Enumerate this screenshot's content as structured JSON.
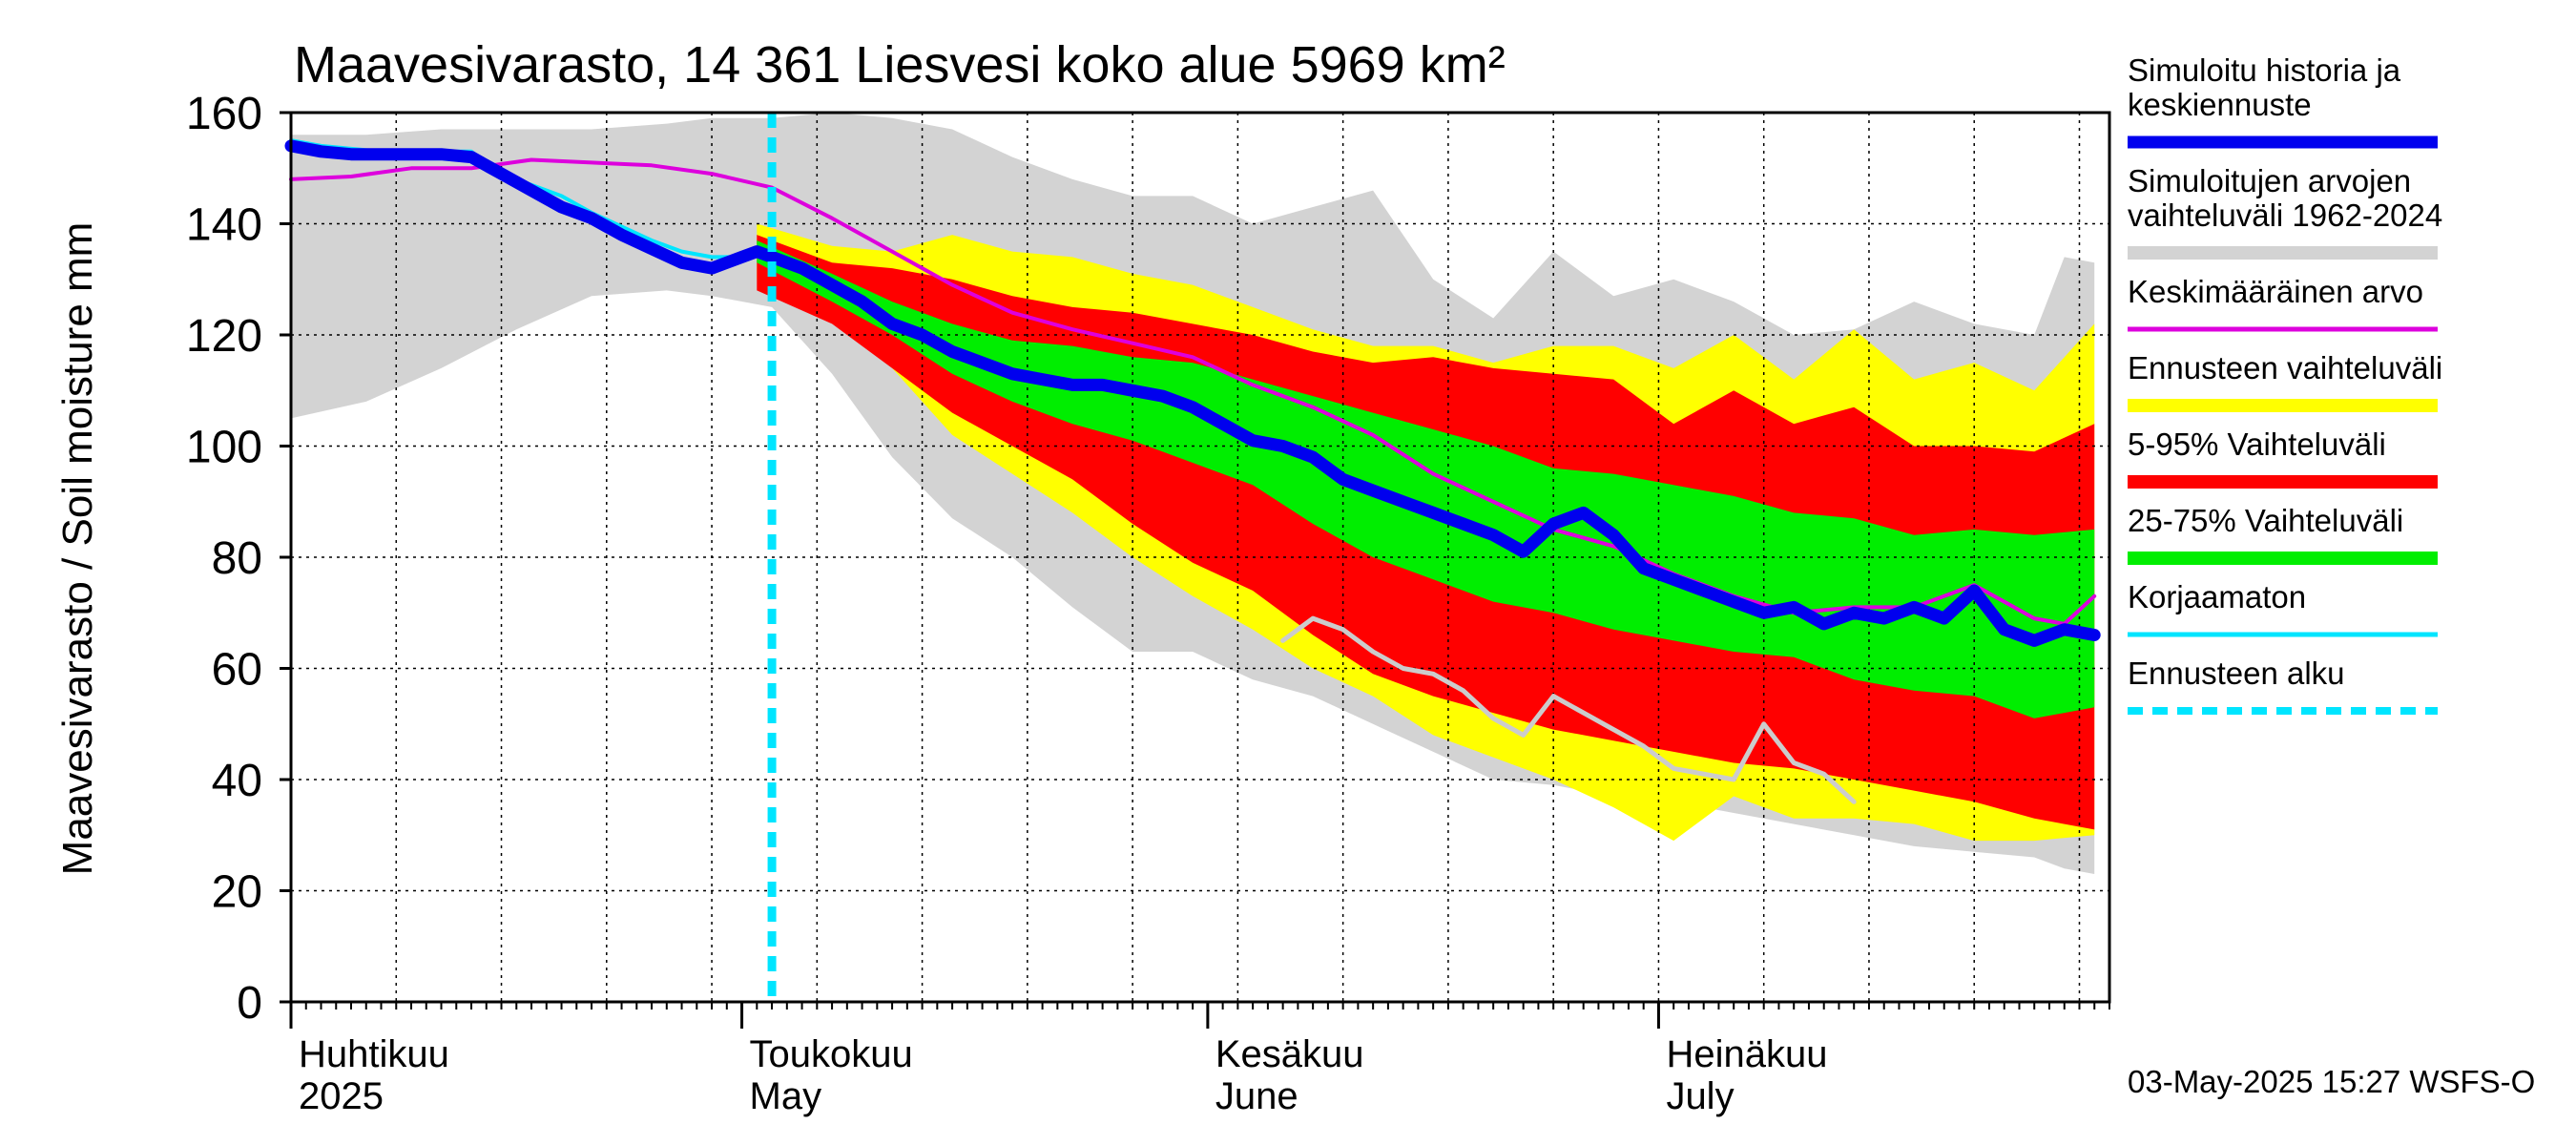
{
  "chart_data": {
    "type": "area",
    "title": "Maavesivarasto, 14 361 Liesvesi koko alue 5969 km²",
    "ylabel": "Maavesivarasto / Soil moisture   mm",
    "xlabel": "",
    "ylim": [
      0,
      160
    ],
    "yticks": [
      0,
      20,
      40,
      60,
      80,
      100,
      120,
      140,
      160
    ],
    "xdomain": [
      "2025-04-01",
      "2025-07-31"
    ],
    "forecast_start": "2025-05-03",
    "months": [
      {
        "label": "Huhtikuu",
        "label2": "2025",
        "start": "2025-04-01",
        "end": "2025-04-30"
      },
      {
        "label": "Toukokuu",
        "label2": "May",
        "start": "2025-05-01",
        "end": "2025-05-31"
      },
      {
        "label": "Kesäkuu",
        "label2": "June",
        "start": "2025-06-01",
        "end": "2025-06-30"
      },
      {
        "label": "Heinäkuu",
        "label2": "July",
        "start": "2025-07-01",
        "end": "2025-07-31"
      }
    ],
    "legend": [
      {
        "key": "history",
        "label": [
          "Simuloitu historia ja",
          "keskiennuste"
        ],
        "color": "#0000ee",
        "style": "thick"
      },
      {
        "key": "range_hist",
        "label": [
          "Simuloitujen arvojen",
          "vaihteluväli 1962-2024"
        ],
        "color": "#d3d3d3",
        "style": "band"
      },
      {
        "key": "mean",
        "label": [
          "Keskimääräinen arvo"
        ],
        "color": "#dd00dd",
        "style": "line"
      },
      {
        "key": "forecast_range",
        "label": [
          "Ennusteen vaihteluväli"
        ],
        "color": "#ffff00",
        "style": "band"
      },
      {
        "key": "p5_95",
        "label": [
          "5-95% Vaihteluväli"
        ],
        "color": "#ff0000",
        "style": "band"
      },
      {
        "key": "p25_75",
        "label": [
          "25-75% Vaihteluväli"
        ],
        "color": "#00ee00",
        "style": "band"
      },
      {
        "key": "uncorrected",
        "label": [
          "Korjaamaton"
        ],
        "color": "#00e5ff",
        "style": "line"
      },
      {
        "key": "forecast_start",
        "label": [
          "Ennusteen alku"
        ],
        "color": "#00e5ff",
        "style": "dashed"
      }
    ],
    "series": {
      "hist_band": {
        "x": [
          0,
          5,
          10,
          15,
          20,
          25,
          28,
          32,
          36,
          40,
          44,
          48,
          52,
          56,
          60,
          64,
          68,
          72,
          76,
          80,
          84,
          88,
          92,
          96,
          100,
          104,
          108,
          112,
          116,
          118,
          120
        ],
        "upper": [
          156,
          156,
          157,
          157,
          157,
          158,
          159,
          159,
          160,
          159,
          157,
          152,
          148,
          145,
          145,
          140,
          143,
          146,
          130,
          123,
          135,
          127,
          130,
          126,
          120,
          121,
          126,
          122,
          120,
          134,
          133
        ],
        "lower": [
          105,
          108,
          114,
          121,
          127,
          128,
          127,
          125,
          113,
          98,
          87,
          80,
          71,
          63,
          63,
          58,
          55,
          50,
          45,
          40,
          39,
          37,
          36,
          34,
          32,
          30,
          28,
          27,
          26,
          24,
          23
        ]
      },
      "forecast_band": {
        "x": [
          31,
          36,
          40,
          44,
          48,
          52,
          56,
          60,
          64,
          68,
          72,
          76,
          80,
          84,
          88,
          92,
          96,
          100,
          104,
          108,
          112,
          116,
          120
        ],
        "upper": [
          140,
          136,
          135,
          138,
          135,
          134,
          131,
          129,
          125,
          121,
          118,
          118,
          115,
          118,
          118,
          114,
          120,
          112,
          121,
          112,
          115,
          110,
          122
        ],
        "lower": [
          130,
          124,
          114,
          102,
          95,
          88,
          80,
          73,
          67,
          60,
          55,
          48,
          44,
          40,
          35,
          29,
          37,
          33,
          33,
          32,
          29,
          29,
          30
        ]
      },
      "p5_95": {
        "x": [
          31,
          36,
          40,
          44,
          48,
          52,
          56,
          60,
          64,
          68,
          72,
          76,
          80,
          84,
          88,
          92,
          96,
          100,
          104,
          108,
          112,
          116,
          120
        ],
        "upper": [
          138,
          133,
          132,
          130,
          127,
          125,
          124,
          122,
          120,
          117,
          115,
          116,
          114,
          113,
          112,
          104,
          110,
          104,
          107,
          100,
          100,
          99,
          104
        ],
        "lower": [
          128,
          122,
          114,
          106,
          100,
          94,
          86,
          79,
          74,
          66,
          59,
          55,
          52,
          49,
          47,
          45,
          43,
          42,
          40,
          38,
          36,
          33,
          31
        ]
      },
      "p25_75": {
        "x": [
          31,
          36,
          40,
          44,
          48,
          52,
          56,
          60,
          64,
          68,
          72,
          76,
          80,
          84,
          88,
          92,
          96,
          100,
          104,
          108,
          112,
          116,
          120
        ],
        "upper": [
          137,
          131,
          126,
          122,
          119,
          118,
          116,
          115,
          112,
          109,
          106,
          103,
          100,
          96,
          95,
          93,
          91,
          88,
          87,
          84,
          85,
          84,
          85
        ],
        "lower": [
          133,
          126,
          120,
          113,
          108,
          104,
          101,
          97,
          93,
          86,
          80,
          76,
          72,
          70,
          67,
          65,
          63,
          62,
          58,
          56,
          55,
          51,
          53
        ]
      },
      "median": {
        "x": [
          0,
          2,
          4,
          6,
          8,
          10,
          12,
          14,
          16,
          18,
          20,
          22,
          24,
          26,
          28,
          30,
          31,
          32,
          34,
          36,
          38,
          40,
          42,
          44,
          46,
          48,
          50,
          52,
          54,
          56,
          58,
          60,
          62,
          64,
          66,
          68,
          70,
          72,
          74,
          76,
          78,
          80,
          82,
          84,
          86,
          88,
          90,
          92,
          94,
          96,
          98,
          100,
          102,
          104,
          106,
          108,
          110,
          112,
          114,
          116,
          118,
          120
        ],
        "y": [
          154,
          153,
          152.5,
          152.5,
          152.5,
          152.5,
          152,
          149,
          146,
          143,
          141,
          138,
          135.5,
          133,
          132,
          134,
          135,
          134,
          132,
          129,
          126,
          122,
          120,
          117,
          115,
          113,
          112,
          111,
          111,
          110,
          109,
          107,
          104,
          101,
          100,
          98,
          94,
          92,
          90,
          88,
          86,
          84,
          81,
          86,
          88,
          84,
          78,
          76,
          74,
          72,
          70,
          71,
          68,
          70,
          69,
          71,
          69,
          74,
          67,
          65,
          67,
          66
        ]
      },
      "mean": {
        "x": [
          0,
          4,
          8,
          12,
          16,
          20,
          24,
          28,
          32,
          36,
          40,
          44,
          48,
          52,
          56,
          60,
          64,
          68,
          72,
          76,
          80,
          84,
          88,
          92,
          96,
          100,
          104,
          108,
          112,
          116,
          118,
          120
        ],
        "y": [
          148,
          148.5,
          150,
          150,
          151.5,
          151,
          150.5,
          149,
          146.5,
          141,
          135,
          129,
          124,
          121,
          118.5,
          116,
          111,
          107,
          102,
          95,
          90,
          85,
          82,
          77,
          73,
          70,
          71,
          71,
          75,
          69,
          68,
          73
        ]
      },
      "uncorrected": {
        "x": [
          0,
          2,
          4,
          6,
          8,
          10,
          12,
          14,
          16,
          18,
          20,
          22,
          24,
          26,
          28,
          30
        ],
        "y": [
          155,
          154,
          153.5,
          153,
          153,
          153,
          153,
          149,
          147,
          145,
          142,
          139.5,
          137,
          135,
          134,
          134
        ]
      },
      "grey_scenario": {
        "x": [
          66,
          68,
          70,
          72,
          74,
          76,
          78,
          80,
          82,
          84,
          86,
          88,
          90,
          92,
          94,
          96,
          98,
          100,
          102,
          104
        ],
        "y": [
          65,
          69,
          67,
          63,
          60,
          59,
          56,
          51,
          48,
          55,
          52,
          49,
          46,
          42,
          41,
          40,
          50,
          43,
          41,
          36
        ]
      }
    }
  },
  "timestamp": "03-May-2025 15:27 WSFS-O"
}
